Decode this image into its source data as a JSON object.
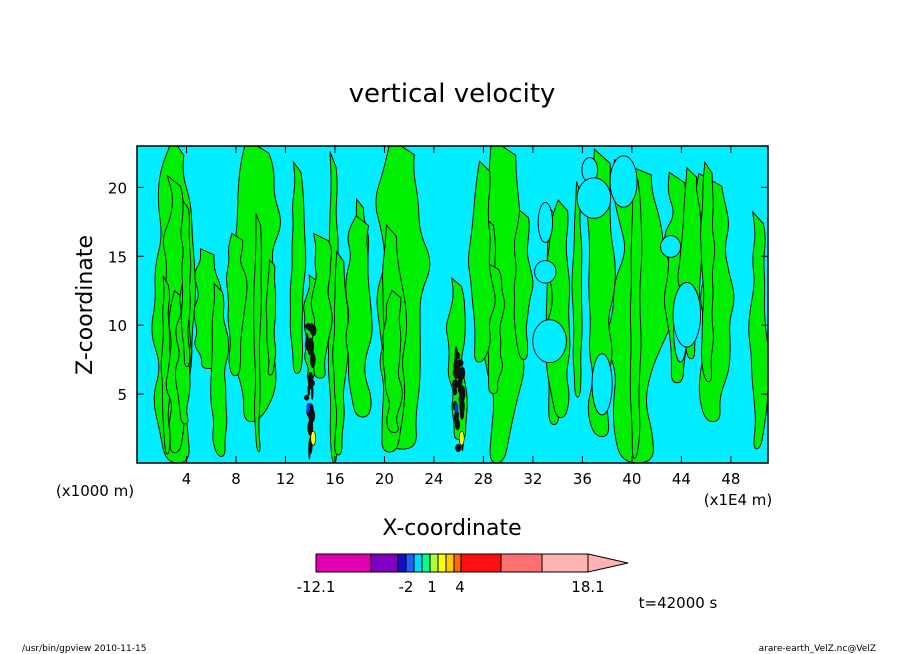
{
  "chart_data": {
    "type": "heatmap",
    "title": "vertical velocity",
    "xlabel": "X-coordinate",
    "ylabel": "Z-coordinate",
    "x_unit_left": "(x1000 m)",
    "x_unit_right": "(x1E4 m)",
    "x_ticks": [
      "4",
      "8",
      "12",
      "16",
      "20",
      "24",
      "28",
      "32",
      "36",
      "40",
      "44",
      "48"
    ],
    "y_ticks": [
      "5",
      "10",
      "15",
      "20"
    ],
    "xlim": [
      0,
      51
    ],
    "ylim": [
      0,
      23
    ],
    "colorbar": {
      "labels": [
        "-12.1",
        "-2",
        "1",
        "4",
        "18.1"
      ],
      "colors": [
        "#e000b0",
        "#8000c0",
        "#1010c8",
        "#2060ff",
        "#00d8ff",
        "#00ff90",
        "#b0ff30",
        "#ffff00",
        "#ffc800",
        "#ff6a00",
        "#ff1010",
        "#ff7070",
        "#ffb4b4"
      ]
    },
    "fields": {
      "background_color": "#00eeff",
      "upward_color": "#00ee00",
      "strong_cores": [
        {
          "x": 14,
          "z_top": 10
        },
        {
          "x": 26,
          "z_top": 8
        }
      ]
    },
    "time_label": "t=42000 s"
  },
  "footer": {
    "left": "/usr/bin/gpview 2010-11-15",
    "right": "arare-earth_VelZ.nc@VelZ"
  }
}
